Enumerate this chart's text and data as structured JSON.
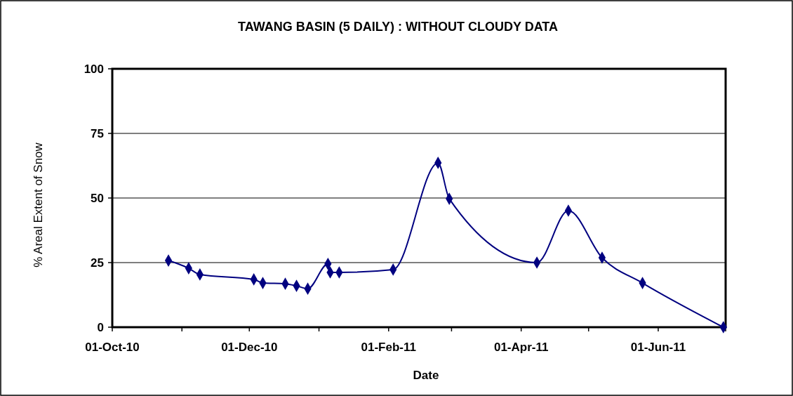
{
  "chart_data": {
    "type": "line",
    "title": "TAWANG BASIN (5 DAILY) : WITHOUT CLOUDY DATA",
    "xlabel": "Date",
    "ylabel": "% Areal Extent of Snow",
    "x": [
      "2010-10-26",
      "2010-11-04",
      "2010-11-09",
      "2010-12-03",
      "2010-12-07",
      "2010-12-17",
      "2010-12-22",
      "2010-12-27",
      "2011-01-05",
      "2011-01-06",
      "2011-01-10",
      "2011-02-03",
      "2011-02-23",
      "2011-02-28",
      "2011-04-08",
      "2011-04-22",
      "2011-05-07",
      "2011-05-25",
      "2011-06-30"
    ],
    "series": [
      {
        "color": "#000080",
        "values": [
          25.8,
          22.8,
          20.4,
          18.5,
          17.1,
          16.8,
          16.0,
          14.9,
          24.5,
          21.2,
          21.2,
          22.3,
          63.6,
          49.7,
          25.0,
          45.1,
          26.9,
          17.1,
          0
        ]
      }
    ],
    "xlim": [
      "2010-10-01",
      "2011-07-01"
    ],
    "xticks": [
      {
        "value": "2010-10-01",
        "label": "01-Oct-10"
      },
      {
        "value": "2010-11-01",
        "label": null
      },
      {
        "value": "2010-12-01",
        "label": "01-Dec-10"
      },
      {
        "value": "2011-01-01",
        "label": null
      },
      {
        "value": "2011-02-01",
        "label": "01-Feb-11"
      },
      {
        "value": "2011-03-01",
        "label": null
      },
      {
        "value": "2011-04-01",
        "label": "01-Apr-11"
      },
      {
        "value": "2011-05-01",
        "label": null
      },
      {
        "value": "2011-06-01",
        "label": "01-Jun-11"
      },
      {
        "value": "2011-07-01",
        "label": null
      }
    ],
    "ylim": [
      0,
      100
    ],
    "yticks": [
      0,
      25,
      50,
      75,
      100
    ],
    "grid": "y",
    "marker": "diamond",
    "line_style": "solid"
  }
}
